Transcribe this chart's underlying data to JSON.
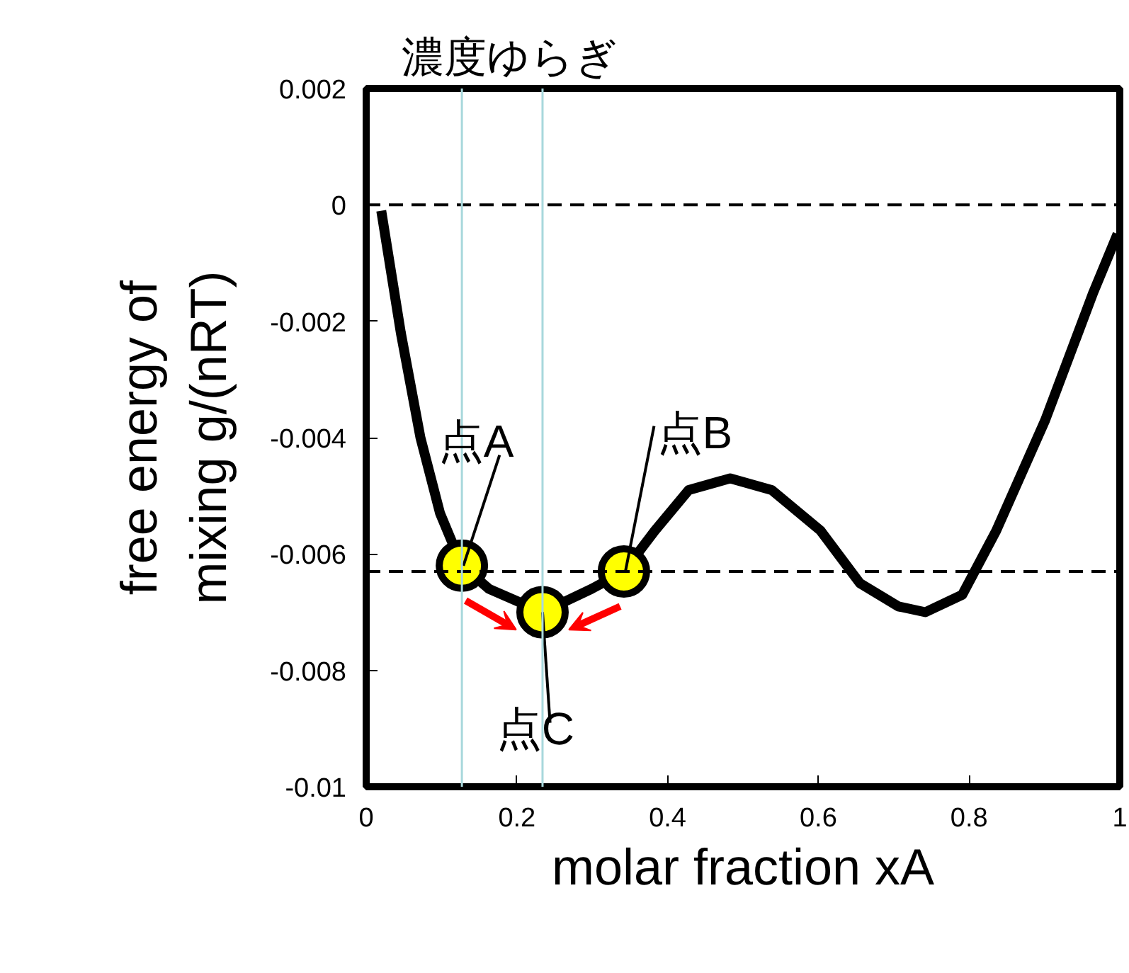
{
  "chart_data": {
    "type": "line",
    "title": "濃度ゆらぎ",
    "xlabel": "molar fraction xA",
    "ylabel": "free energy of\nmixing g/(nRT)",
    "xlim": [
      0,
      1
    ],
    "ylim": [
      -0.01,
      0.002
    ],
    "xticks": [
      0,
      0.2,
      0.4,
      0.6,
      0.8,
      1
    ],
    "yticks": [
      0.002,
      0,
      -0.002,
      -0.004,
      -0.006,
      -0.008,
      -0.01
    ],
    "grid": false,
    "line_style": "solid",
    "series": [
      {
        "color": "#000000",
        "x": [
          0.02,
          0.046,
          0.072,
          0.098,
          0.127,
          0.163,
          0.234,
          0.299,
          0.342,
          0.383,
          0.428,
          0.483,
          0.538,
          0.603,
          0.655,
          0.706,
          0.742,
          0.791,
          0.836,
          0.901,
          0.965,
          0.997
        ],
        "values": [
          -0.0001,
          -0.0022,
          -0.004,
          -0.0053,
          -0.0062,
          -0.0066,
          -0.007,
          -0.0066,
          -0.0063,
          -0.0056,
          -0.0049,
          -0.0047,
          -0.0049,
          -0.0056,
          -0.0065,
          -0.0069,
          -0.007,
          -0.0067,
          -0.0056,
          -0.0037,
          -0.0015,
          -0.0005
        ]
      },
      {
        "type": "scatter",
        "marker": "circle",
        "color": "#ffff00",
        "x": [
          0.127,
          0.342,
          0.234
        ],
        "values": [
          -0.0062,
          -0.0063,
          -0.007
        ]
      }
    ],
    "ref_lines": [
      {
        "axis": "y",
        "value": 0,
        "line_style": "dashed",
        "color": "#000000"
      },
      {
        "axis": "y",
        "value": -0.0063,
        "line_style": "dashed",
        "color": "#000000"
      },
      {
        "axis": "x",
        "value": 0.127,
        "line_style": "solid",
        "color": "#a8d8dc"
      },
      {
        "axis": "x",
        "value": 0.234,
        "line_style": "solid",
        "color": "#a8d8dc"
      }
    ],
    "annotations": [
      {
        "text": "点A",
        "x": 0.127,
        "y": -0.0062
      },
      {
        "text": "点B",
        "x": 0.342,
        "y": -0.0063
      },
      {
        "text": "点C",
        "x": 0.234,
        "y": -0.007
      }
    ]
  }
}
